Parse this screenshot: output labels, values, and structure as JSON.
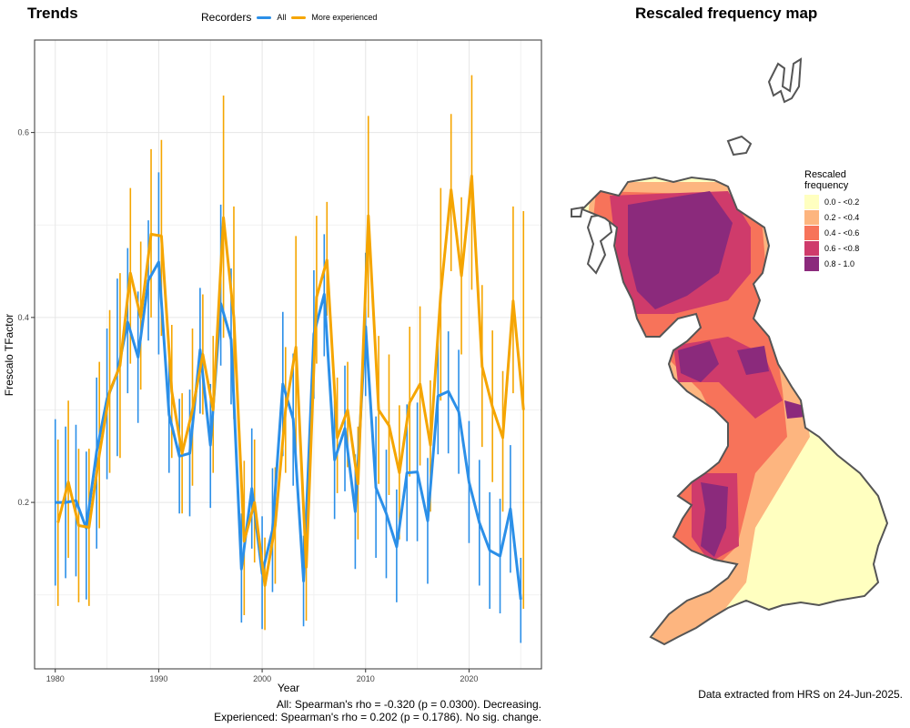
{
  "left_panel": {
    "title": "Trends",
    "legend_title": "Recorders",
    "legend_items": [
      "All",
      "More experienced"
    ]
  },
  "right_panel": {
    "title": "Rescaled frequency map",
    "legend_title_line1": "Rescaled",
    "legend_title_line2": "frequency",
    "legend_items": [
      {
        "label": "0.0 - <0.2",
        "color": "#ffffc0"
      },
      {
        "label": "0.2 - <0.4",
        "color": "#fdb57f"
      },
      {
        "label": "0.4 - <0.6",
        "color": "#f7735a"
      },
      {
        "label": "0.6 - <0.8",
        "color": "#cf3b6b"
      },
      {
        "label": "0.8 - 1.0",
        "color": "#8b2a7c"
      }
    ]
  },
  "stats": {
    "all": "All: Spearman's rho = -0.320 (p = 0.0300). Decreasing.",
    "experienced": "Experienced: Spearman's rho = 0.202 (p = 0.1786). No sig. change."
  },
  "footer": "Data extracted from HRS on 24-Jun-2025.",
  "chart_data": {
    "type": "line",
    "xlabel": "Year",
    "ylabel": "Frescalo TFactor",
    "xlim": [
      1978,
      2027
    ],
    "ylim": [
      0.02,
      0.7
    ],
    "xticks": [
      1980,
      1990,
      2000,
      2010,
      2020
    ],
    "yticks": [
      0.2,
      0.4,
      0.6
    ],
    "grid": true,
    "legend_position": "top",
    "series": [
      {
        "name": "All",
        "color": "#2b8fe8",
        "x": [
          1980,
          1981,
          1982,
          1983,
          1984,
          1985,
          1986,
          1987,
          1988,
          1989,
          1990,
          1991,
          1992,
          1993,
          1994,
          1995,
          1996,
          1997,
          1998,
          1999,
          2000,
          2001,
          2002,
          2003,
          2004,
          2005,
          2006,
          2007,
          2008,
          2009,
          2010,
          2011,
          2012,
          2013,
          2014,
          2015,
          2016,
          2017,
          2018,
          2019,
          2020,
          2021,
          2022,
          2023,
          2024,
          2025
        ],
        "y": [
          0.2,
          0.2,
          0.202,
          0.172,
          0.255,
          0.312,
          0.34,
          0.395,
          0.357,
          0.44,
          0.46,
          0.295,
          0.25,
          0.253,
          0.365,
          0.262,
          0.415,
          0.376,
          0.128,
          0.215,
          0.123,
          0.17,
          0.328,
          0.29,
          0.115,
          0.382,
          0.425,
          0.246,
          0.28,
          0.19,
          0.39,
          0.216,
          0.188,
          0.152,
          0.232,
          0.233,
          0.18,
          0.315,
          0.32,
          0.298,
          0.222,
          0.178,
          0.148,
          0.142,
          0.193,
          0.095
        ],
        "lower": [
          0.11,
          0.118,
          0.12,
          0.095,
          0.15,
          0.225,
          0.25,
          0.318,
          0.286,
          0.375,
          0.36,
          0.232,
          0.188,
          0.185,
          0.296,
          0.194,
          0.348,
          0.306,
          0.07,
          0.15,
          0.063,
          0.103,
          0.25,
          0.218,
          0.066,
          0.312,
          0.358,
          0.182,
          0.212,
          0.128,
          0.315,
          0.14,
          0.118,
          0.092,
          0.158,
          0.158,
          0.112,
          0.252,
          0.253,
          0.231,
          0.156,
          0.11,
          0.085,
          0.08,
          0.124,
          0.048
        ],
        "upper": [
          0.29,
          0.282,
          0.284,
          0.255,
          0.335,
          0.388,
          0.442,
          0.475,
          0.428,
          0.505,
          0.557,
          0.358,
          0.312,
          0.322,
          0.432,
          0.328,
          0.522,
          0.453,
          0.188,
          0.28,
          0.185,
          0.237,
          0.406,
          0.361,
          0.164,
          0.451,
          0.49,
          0.31,
          0.348,
          0.252,
          0.47,
          0.293,
          0.257,
          0.214,
          0.306,
          0.308,
          0.248,
          0.378,
          0.385,
          0.365,
          0.288,
          0.246,
          0.211,
          0.204,
          0.262,
          0.14
        ]
      },
      {
        "name": "More experienced",
        "color": "#f5a500",
        "x": [
          1980,
          1981,
          1982,
          1983,
          1984,
          1985,
          1986,
          1987,
          1988,
          1989,
          1990,
          1991,
          1992,
          1993,
          1994,
          1995,
          1996,
          1997,
          1998,
          1999,
          2000,
          2001,
          2002,
          2003,
          2004,
          2005,
          2006,
          2007,
          2008,
          2009,
          2010,
          2011,
          2012,
          2013,
          2014,
          2015,
          2016,
          2017,
          2018,
          2019,
          2020,
          2021,
          2022,
          2023,
          2024,
          2025
        ],
        "y": [
          0.178,
          0.222,
          0.175,
          0.173,
          0.252,
          0.32,
          0.348,
          0.448,
          0.4,
          0.49,
          0.488,
          0.32,
          0.253,
          0.3,
          0.36,
          0.3,
          0.508,
          0.4,
          0.158,
          0.2,
          0.11,
          0.175,
          0.3,
          0.368,
          0.13,
          0.422,
          0.462,
          0.27,
          0.3,
          0.22,
          0.51,
          0.3,
          0.283,
          0.232,
          0.308,
          0.328,
          0.262,
          0.425,
          0.538,
          0.445,
          0.553,
          0.347,
          0.303,
          0.27,
          0.418,
          0.3
        ],
        "lower": [
          0.088,
          0.14,
          0.092,
          0.088,
          0.172,
          0.232,
          0.248,
          0.35,
          0.322,
          0.4,
          0.38,
          0.248,
          0.188,
          0.218,
          0.295,
          0.232,
          0.378,
          0.29,
          0.078,
          0.135,
          0.062,
          0.112,
          0.232,
          0.25,
          0.072,
          0.35,
          0.402,
          0.21,
          0.238,
          0.16,
          0.4,
          0.22,
          0.208,
          0.16,
          0.228,
          0.24,
          0.19,
          0.31,
          0.45,
          0.36,
          0.43,
          0.26,
          0.222,
          0.19,
          0.318,
          0.085
        ],
        "upper": [
          0.268,
          0.31,
          0.258,
          0.258,
          0.352,
          0.408,
          0.448,
          0.54,
          0.482,
          0.582,
          0.592,
          0.392,
          0.318,
          0.388,
          0.425,
          0.38,
          0.64,
          0.52,
          0.245,
          0.268,
          0.162,
          0.238,
          0.368,
          0.488,
          0.2,
          0.51,
          0.525,
          0.335,
          0.352,
          0.282,
          0.618,
          0.38,
          0.36,
          0.305,
          0.39,
          0.412,
          0.332,
          0.54,
          0.62,
          0.53,
          0.662,
          0.435,
          0.386,
          0.342,
          0.52,
          0.515
        ]
      }
    ]
  }
}
